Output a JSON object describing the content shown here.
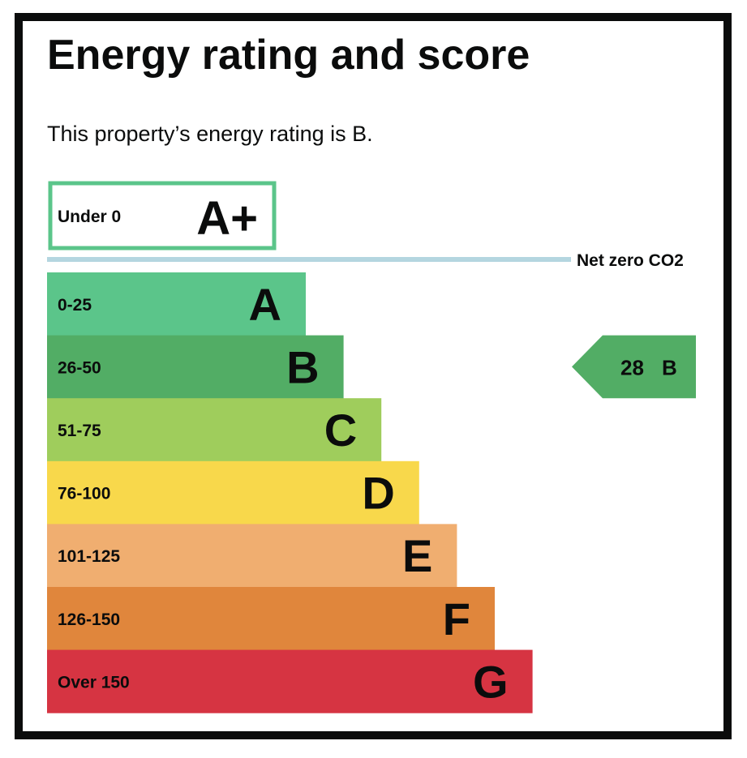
{
  "title": "Energy rating and score",
  "subtitle": "This property’s energy rating is B.",
  "chart_data": {
    "type": "bar",
    "title": "Energy rating and score",
    "aplus": {
      "range": "Under 0",
      "letter": "A+",
      "color": "#5bc58a"
    },
    "net_zero_label": "Net zero CO2",
    "net_zero_color": "#b4d6e0",
    "bands": [
      {
        "range": "0-25",
        "letter": "A",
        "color": "#5bc58a"
      },
      {
        "range": "26-50",
        "letter": "B",
        "color": "#52ad65"
      },
      {
        "range": "51-75",
        "letter": "C",
        "color": "#9fcd5c"
      },
      {
        "range": "76-100",
        "letter": "D",
        "color": "#f8d84b"
      },
      {
        "range": "101-125",
        "letter": "E",
        "color": "#f0ae70"
      },
      {
        "range": "126-150",
        "letter": "F",
        "color": "#e0863c"
      },
      {
        "range": "Over 150",
        "letter": "G",
        "color": "#d63442"
      }
    ],
    "current": {
      "score": 28,
      "score_label": "28",
      "letter": "B",
      "color": "#52ad65"
    }
  }
}
